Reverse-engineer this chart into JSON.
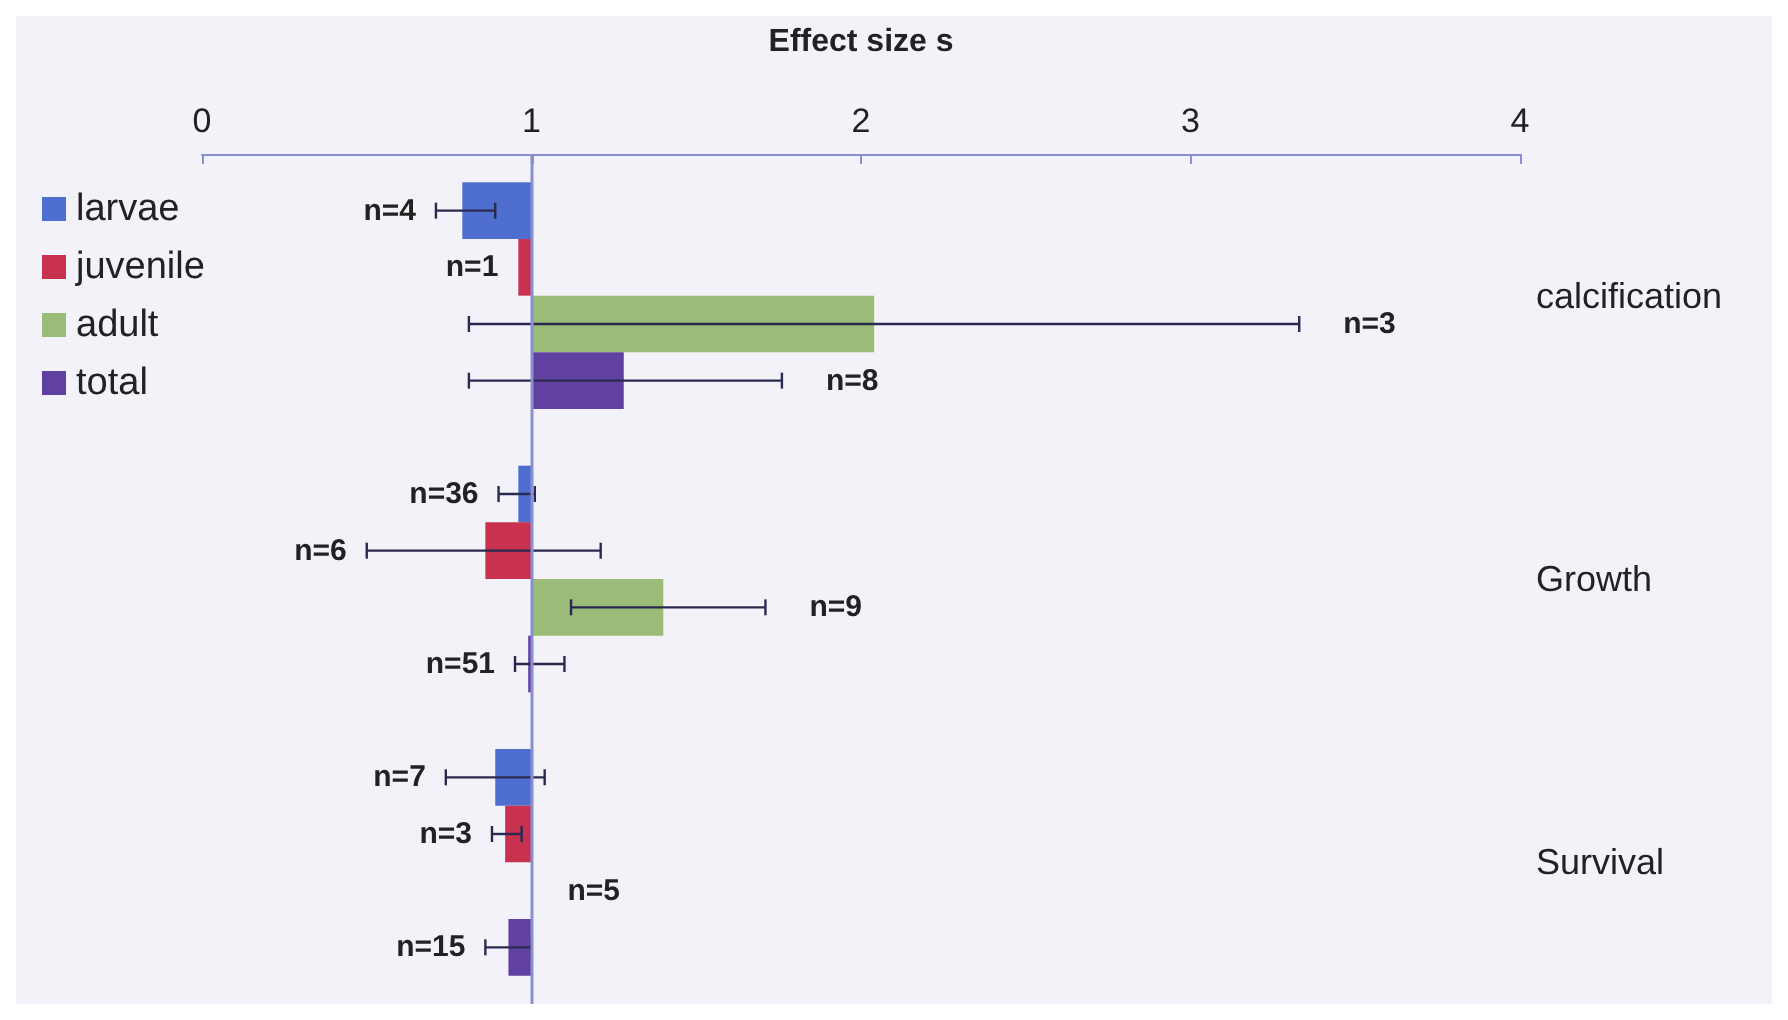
{
  "chart_data": {
    "type": "bar",
    "orientation": "horizontal",
    "xlabel": "Effect size s",
    "categories": [
      "calcification",
      "Growth",
      "Survival"
    ],
    "xlim": [
      0,
      4
    ],
    "xticks": [
      0,
      1,
      2,
      3,
      4
    ],
    "grid": false,
    "legend": "top left",
    "ref_lines": [
      {
        "axis": "x",
        "value": 1,
        "color": "#8a8fd0"
      }
    ],
    "annotations": [
      "n=4",
      "n=1",
      "n=3",
      "n=8",
      "n=36",
      "n=6",
      "n=9",
      "n=51",
      "n=7",
      "n=3",
      "n=5",
      "n=15"
    ],
    "series": [
      {
        "name": "larvae",
        "color": "#4f6fd0",
        "base": [
          1,
          1,
          1
        ],
        "values": [
          -0.21,
          -0.04,
          -0.11
        ],
        "errors": [
          [
            0.71,
            0.89
          ],
          [
            0.9,
            1.01
          ],
          [
            0.74,
            1.04
          ]
        ]
      },
      {
        "name": "juvenile",
        "color": "#c8324e",
        "base": [
          1,
          1,
          1
        ],
        "values": [
          -0.04,
          -0.14,
          -0.08
        ],
        "errors": [
          null,
          [
            0.5,
            1.21
          ],
          [
            0.88,
            0.97
          ]
        ]
      },
      {
        "name": "adult",
        "color": "#9bbb78",
        "base": [
          1,
          1,
          null
        ],
        "values": [
          1.04,
          0.4,
          null
        ],
        "errors": [
          [
            0.81,
            3.33
          ],
          [
            1.12,
            1.71
          ],
          null
        ]
      },
      {
        "name": "total",
        "color": "#6040a0",
        "base": [
          1,
          1,
          1
        ],
        "values": [
          0.28,
          -0.01,
          -0.07
        ],
        "errors": [
          [
            0.81,
            1.76
          ],
          [
            0.95,
            1.1
          ],
          [
            0.86,
            1.0
          ]
        ]
      }
    ]
  }
}
